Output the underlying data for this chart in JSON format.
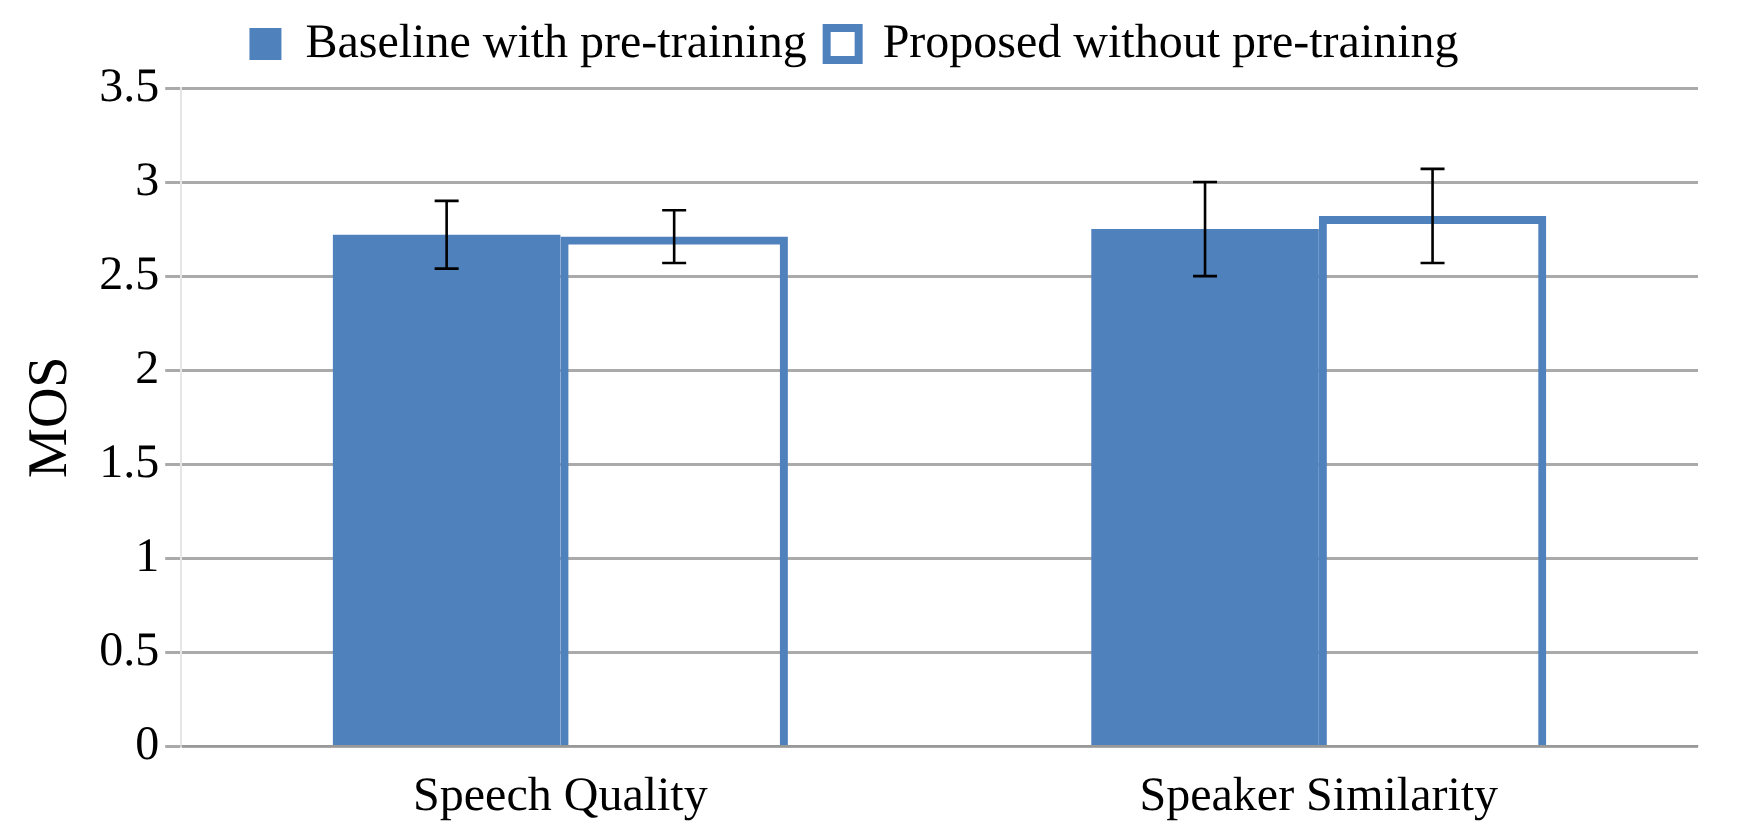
{
  "chart_data": {
    "type": "bar",
    "ylabel": "MOS",
    "categories": [
      "Speech Quality",
      "Speaker Similarity"
    ],
    "series": [
      {
        "name": "Baseline with pre-training",
        "color": "#4f81bd",
        "values": [
          2.72,
          2.75
        ],
        "errors": [
          0.18,
          0.25
        ]
      },
      {
        "name": "Proposed without pre-training",
        "color": "#4f81bd",
        "values": [
          2.71,
          2.82
        ],
        "errors": [
          0.14,
          0.25
        ]
      }
    ],
    "ylim": [
      0,
      3.5
    ],
    "yticks": [
      0,
      0.5,
      1,
      1.5,
      2,
      2.5,
      3,
      3.5
    ],
    "grid": "y",
    "legend": "top"
  }
}
